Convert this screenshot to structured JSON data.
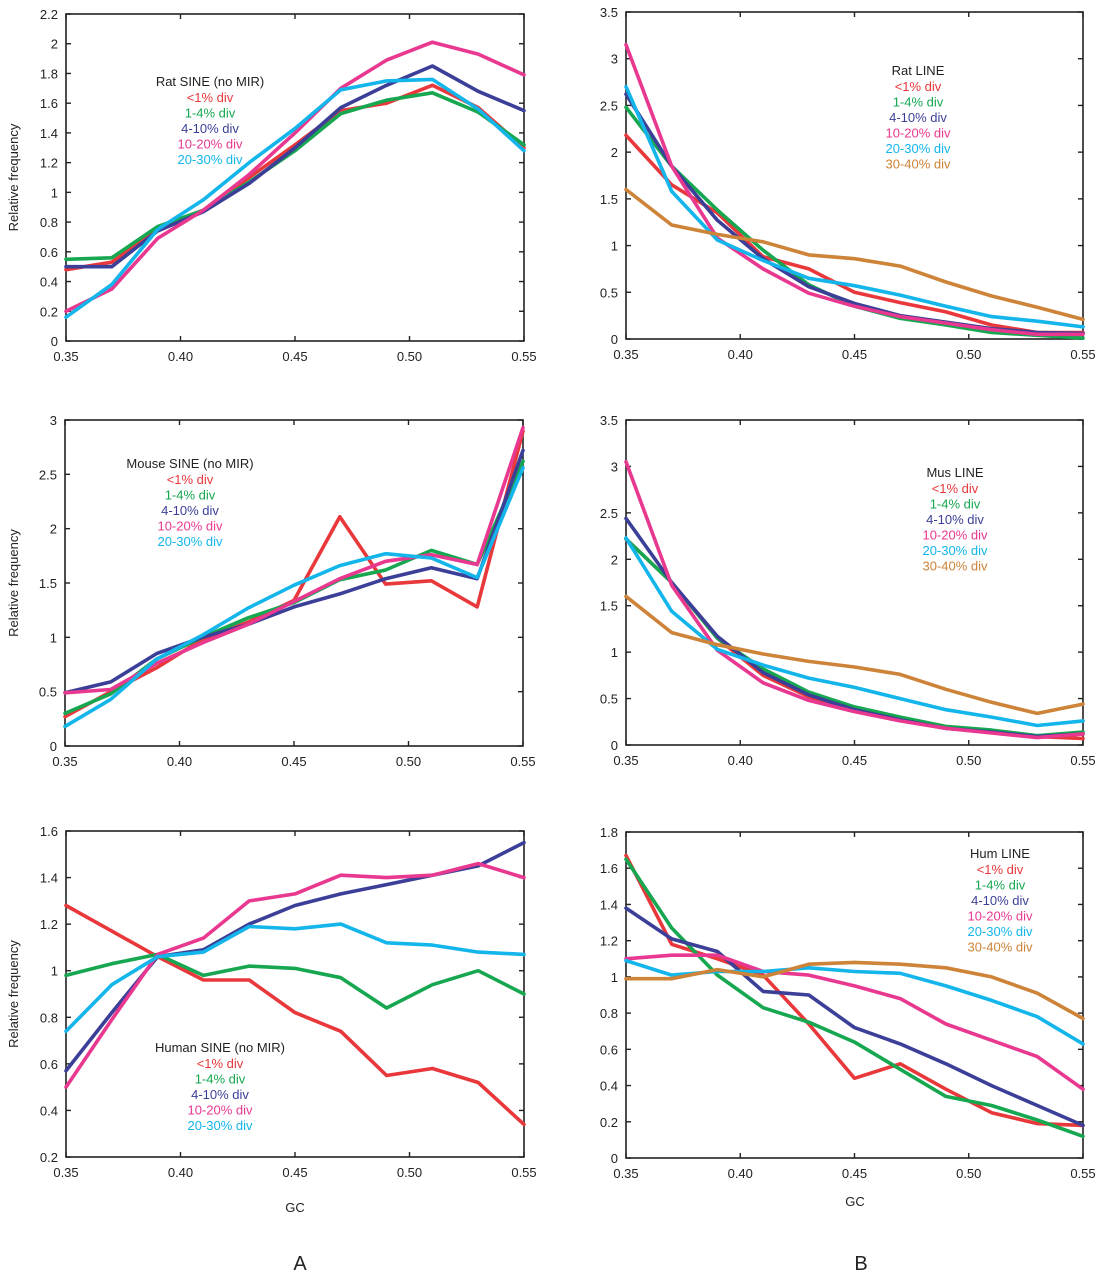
{
  "figure": {
    "column_labels": [
      "A",
      "B"
    ],
    "x_axis_label": "GC",
    "y_axis_label": "Relative frequency"
  },
  "series_colors": {
    "<1% div": "#e8383b",
    "1-4% div": "#16a750",
    "4-10% div": "#3b3f98",
    "10-20% div": "#e8388f",
    "20-30% div": "#13b5ea",
    "30-40% div": "#cd8338"
  },
  "chart_data": [
    {
      "id": "rat-sine",
      "type": "line",
      "title": "Rat SINE (no MIR)",
      "xlabel": "",
      "ylabel": "Relative frequency",
      "xlim": [
        0.35,
        0.55
      ],
      "ylim": [
        0,
        2.2
      ],
      "xticks": [
        "0.35",
        "0.40",
        "0.45",
        "0.50",
        "0.55"
      ],
      "yticks": [
        "0",
        "0.2",
        "0.4",
        "0.6",
        "0.8",
        "1",
        "1.2",
        "1.4",
        "1.6",
        "1.8",
        "2",
        "2.2"
      ],
      "legend_position": "upper-left",
      "x": [
        0.35,
        0.37,
        0.39,
        0.41,
        0.43,
        0.45,
        0.47,
        0.49,
        0.51,
        0.53,
        0.55
      ],
      "series": [
        {
          "name": "<1% div",
          "values": [
            0.48,
            0.53,
            0.75,
            0.88,
            1.1,
            1.32,
            1.55,
            1.6,
            1.72,
            1.57,
            1.3
          ]
        },
        {
          "name": "1-4% div",
          "values": [
            0.55,
            0.56,
            0.77,
            0.88,
            1.07,
            1.28,
            1.53,
            1.62,
            1.67,
            1.54,
            1.32
          ]
        },
        {
          "name": "4-10% div",
          "values": [
            0.5,
            0.5,
            0.74,
            0.87,
            1.06,
            1.3,
            1.57,
            1.72,
            1.85,
            1.68,
            1.55
          ]
        },
        {
          "name": "10-20% div",
          "values": [
            0.2,
            0.35,
            0.69,
            0.88,
            1.12,
            1.4,
            1.7,
            1.89,
            2.01,
            1.93,
            1.79
          ]
        },
        {
          "name": "20-30% div",
          "values": [
            0.16,
            0.38,
            0.75,
            0.95,
            1.2,
            1.43,
            1.69,
            1.75,
            1.76,
            1.56,
            1.28
          ]
        }
      ]
    },
    {
      "id": "rat-line",
      "type": "line",
      "title": "Rat LINE",
      "xlabel": "",
      "ylabel": "",
      "xlim": [
        0.35,
        0.55
      ],
      "ylim": [
        0,
        3.5
      ],
      "xticks": [
        "0.35",
        "0.40",
        "0.45",
        "0.50",
        "0.55"
      ],
      "yticks": [
        "0",
        "0.5",
        "1",
        "1.5",
        "2",
        "2.5",
        "3",
        "3.5"
      ],
      "legend_position": "upper-right",
      "x": [
        0.35,
        0.37,
        0.39,
        0.41,
        0.43,
        0.45,
        0.47,
        0.49,
        0.51,
        0.53,
        0.55
      ],
      "series": [
        {
          "name": "<1% div",
          "values": [
            2.18,
            1.65,
            1.35,
            0.88,
            0.75,
            0.5,
            0.39,
            0.29,
            0.15,
            0.07,
            0.07
          ]
        },
        {
          "name": "1-4% div",
          "values": [
            2.48,
            1.85,
            1.38,
            0.95,
            0.58,
            0.35,
            0.22,
            0.15,
            0.07,
            0.04,
            0.01
          ]
        },
        {
          "name": "4-10% div",
          "values": [
            2.62,
            1.85,
            1.27,
            0.86,
            0.56,
            0.38,
            0.25,
            0.18,
            0.11,
            0.07,
            0.06
          ]
        },
        {
          "name": "10-20% div",
          "values": [
            3.15,
            1.85,
            1.08,
            0.75,
            0.49,
            0.35,
            0.24,
            0.17,
            0.1,
            0.05,
            0.05
          ]
        },
        {
          "name": "20-30% div",
          "values": [
            2.7,
            1.58,
            1.06,
            0.84,
            0.65,
            0.57,
            0.47,
            0.35,
            0.24,
            0.19,
            0.13
          ]
        },
        {
          "name": "30-40% div",
          "values": [
            1.6,
            1.22,
            1.12,
            1.04,
            0.9,
            0.86,
            0.78,
            0.61,
            0.46,
            0.34,
            0.21
          ]
        }
      ]
    },
    {
      "id": "mouse-sine",
      "type": "line",
      "title": "Mouse SINE (no MIR)",
      "xlabel": "",
      "ylabel": "Relative frequency",
      "xlim": [
        0.35,
        0.55
      ],
      "ylim": [
        0,
        3
      ],
      "xticks": [
        "0.35",
        "0.40",
        "0.45",
        "0.50",
        "0.55"
      ],
      "yticks": [
        "0",
        "0.5",
        "1",
        "1.5",
        "2",
        "2.5",
        "3"
      ],
      "legend_position": "upper-left",
      "x": [
        0.35,
        0.37,
        0.39,
        0.41,
        0.43,
        0.45,
        0.47,
        0.49,
        0.51,
        0.53,
        0.55
      ],
      "series": [
        {
          "name": "<1% div",
          "values": [
            0.27,
            0.5,
            0.72,
            0.98,
            1.14,
            1.34,
            2.11,
            1.49,
            1.52,
            1.28,
            2.9
          ]
        },
        {
          "name": "1-4% div",
          "values": [
            0.3,
            0.48,
            0.8,
            1.0,
            1.18,
            1.32,
            1.53,
            1.62,
            1.8,
            1.67,
            2.62
          ]
        },
        {
          "name": "4-10% div",
          "values": [
            0.49,
            0.59,
            0.85,
            1.0,
            1.12,
            1.28,
            1.4,
            1.54,
            1.64,
            1.54,
            2.72
          ]
        },
        {
          "name": "10-20% div",
          "values": [
            0.49,
            0.52,
            0.76,
            0.95,
            1.12,
            1.33,
            1.54,
            1.7,
            1.76,
            1.67,
            2.93
          ]
        },
        {
          "name": "20-30% div",
          "values": [
            0.18,
            0.43,
            0.8,
            1.02,
            1.27,
            1.48,
            1.66,
            1.77,
            1.73,
            1.55,
            2.56
          ]
        }
      ]
    },
    {
      "id": "mus-line",
      "type": "line",
      "title": "Mus LINE",
      "xlabel": "",
      "ylabel": "",
      "xlim": [
        0.35,
        0.55
      ],
      "ylim": [
        0,
        3.5
      ],
      "xticks": [
        "0.35",
        "0.40",
        "0.45",
        "0.50",
        "0.55"
      ],
      "yticks": [
        "0",
        "0.5",
        "1",
        "1.5",
        "2",
        "2.5",
        "3",
        "3.5"
      ],
      "legend_position": "upper-right",
      "x": [
        0.35,
        0.37,
        0.39,
        0.41,
        0.43,
        0.45,
        0.47,
        0.49,
        0.51,
        0.53,
        0.55
      ],
      "series": [
        {
          "name": "<1% div",
          "values": [
            2.22,
            1.75,
            1.15,
            0.75,
            0.52,
            0.37,
            0.27,
            0.18,
            0.14,
            0.09,
            0.07
          ]
        },
        {
          "name": "1-4% div",
          "values": [
            2.22,
            1.75,
            1.15,
            0.82,
            0.57,
            0.41,
            0.3,
            0.2,
            0.16,
            0.1,
            0.14
          ]
        },
        {
          "name": "4-10% div",
          "values": [
            2.44,
            1.75,
            1.17,
            0.78,
            0.54,
            0.38,
            0.27,
            0.18,
            0.14,
            0.09,
            0.12
          ]
        },
        {
          "name": "10-20% div",
          "values": [
            3.05,
            1.72,
            1.02,
            0.67,
            0.48,
            0.36,
            0.26,
            0.18,
            0.13,
            0.08,
            0.12
          ]
        },
        {
          "name": "20-30% div",
          "values": [
            2.23,
            1.44,
            1.03,
            0.86,
            0.72,
            0.62,
            0.5,
            0.38,
            0.3,
            0.21,
            0.26
          ]
        },
        {
          "name": "30-40% div",
          "values": [
            1.6,
            1.21,
            1.08,
            0.98,
            0.9,
            0.84,
            0.76,
            0.6,
            0.46,
            0.34,
            0.44
          ]
        }
      ]
    },
    {
      "id": "human-sine",
      "type": "line",
      "title": "Human SINE (no MIR)",
      "xlabel": "GC",
      "ylabel": "Relative frequency",
      "xlim": [
        0.35,
        0.55
      ],
      "ylim": [
        0.2,
        1.6
      ],
      "xticks": [
        "0.35",
        "0.40",
        "0.45",
        "0.50",
        "0.55"
      ],
      "yticks": [
        "0.2",
        "0.4",
        "0.6",
        "0.8",
        "1",
        "1.2",
        "1.4",
        "1.6"
      ],
      "legend_position": "lower-left",
      "x": [
        0.35,
        0.37,
        0.39,
        0.41,
        0.43,
        0.45,
        0.47,
        0.49,
        0.51,
        0.53,
        0.55
      ],
      "series": [
        {
          "name": "<1% div",
          "values": [
            1.28,
            1.17,
            1.06,
            0.96,
            0.96,
            0.82,
            0.74,
            0.55,
            0.58,
            0.52,
            0.34
          ]
        },
        {
          "name": "1-4% div",
          "values": [
            0.98,
            1.03,
            1.07,
            0.98,
            1.02,
            1.01,
            0.97,
            0.84,
            0.94,
            1.0,
            0.9
          ]
        },
        {
          "name": "4-10% div",
          "values": [
            0.57,
            0.82,
            1.06,
            1.09,
            1.2,
            1.28,
            1.33,
            1.37,
            1.41,
            1.45,
            1.55
          ]
        },
        {
          "name": "10-20% div",
          "values": [
            0.5,
            0.79,
            1.07,
            1.14,
            1.3,
            1.33,
            1.41,
            1.4,
            1.41,
            1.46,
            1.4
          ]
        },
        {
          "name": "20-30% div",
          "values": [
            0.74,
            0.94,
            1.06,
            1.08,
            1.19,
            1.18,
            1.2,
            1.12,
            1.11,
            1.08,
            1.07
          ]
        }
      ]
    },
    {
      "id": "hum-line",
      "type": "line",
      "title": "Hum LINE",
      "xlabel": "GC",
      "ylabel": "",
      "xlim": [
        0.35,
        0.55
      ],
      "ylim": [
        0,
        1.8
      ],
      "xticks": [
        "0.35",
        "0.40",
        "0.45",
        "0.50",
        "0.55"
      ],
      "yticks": [
        "0",
        "0.2",
        "0.4",
        "0.6",
        "0.8",
        "1",
        "1.2",
        "1.4",
        "1.6",
        "1.8"
      ],
      "legend_position": "upper-right",
      "x": [
        0.35,
        0.37,
        0.39,
        0.41,
        0.43,
        0.45,
        0.47,
        0.49,
        0.51,
        0.53,
        0.55
      ],
      "series": [
        {
          "name": "<1% div",
          "values": [
            1.67,
            1.18,
            1.1,
            1.01,
            0.74,
            0.44,
            0.52,
            0.38,
            0.25,
            0.19,
            0.18
          ]
        },
        {
          "name": "1-4% div",
          "values": [
            1.65,
            1.27,
            1.01,
            0.83,
            0.75,
            0.64,
            0.49,
            0.34,
            0.29,
            0.21,
            0.12
          ]
        },
        {
          "name": "4-10% div",
          "values": [
            1.38,
            1.21,
            1.14,
            0.92,
            0.9,
            0.72,
            0.63,
            0.52,
            0.4,
            0.29,
            0.18
          ]
        },
        {
          "name": "10-20% div",
          "values": [
            1.1,
            1.12,
            1.12,
            1.03,
            1.01,
            0.95,
            0.88,
            0.74,
            0.65,
            0.56,
            0.38
          ]
        },
        {
          "name": "20-30% div",
          "values": [
            1.09,
            1.01,
            1.03,
            1.03,
            1.05,
            1.03,
            1.02,
            0.95,
            0.87,
            0.78,
            0.63
          ]
        },
        {
          "name": "30-40% div",
          "values": [
            0.99,
            0.99,
            1.04,
            1.0,
            1.07,
            1.08,
            1.07,
            1.05,
            1.0,
            0.91,
            0.77
          ]
        }
      ]
    }
  ]
}
